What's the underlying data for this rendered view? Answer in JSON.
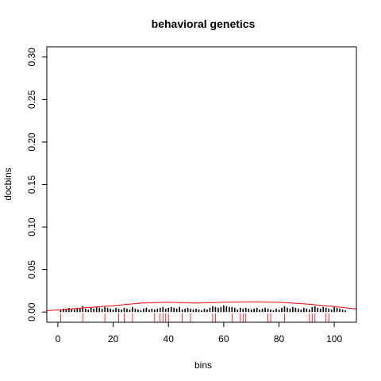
{
  "chart_data": {
    "type": "bar",
    "title": "behavioral genetics",
    "xlabel": "bins",
    "ylabel": "docbins",
    "xlim": [
      -4,
      108
    ],
    "ylim": [
      -0.012,
      0.312
    ],
    "x_ticks": [
      0,
      20,
      40,
      60,
      80,
      100
    ],
    "x_tick_labels": [
      "0",
      "20",
      "40",
      "60",
      "80",
      "100"
    ],
    "y_ticks": [
      0,
      0.05,
      0.1,
      0.15,
      0.2,
      0.25,
      0.3
    ],
    "y_tick_labels": [
      "0.00",
      "0.05",
      "0.10",
      "0.15",
      "0.20",
      "0.25",
      "0.30"
    ],
    "grid": false,
    "series": [
      {
        "kind": "bars",
        "color": "#000000",
        "x": [
          1,
          2,
          3,
          4,
          5,
          6,
          7,
          8,
          9,
          10,
          11,
          12,
          13,
          14,
          15,
          16,
          17,
          18,
          19,
          20,
          21,
          22,
          23,
          24,
          25,
          26,
          27,
          28,
          29,
          30,
          31,
          32,
          33,
          34,
          35,
          36,
          37,
          38,
          39,
          40,
          41,
          42,
          43,
          44,
          45,
          46,
          47,
          48,
          49,
          50,
          51,
          52,
          53,
          54,
          55,
          56,
          57,
          58,
          59,
          60,
          61,
          62,
          63,
          64,
          65,
          66,
          67,
          68,
          69,
          70,
          71,
          72,
          73,
          74,
          75,
          76,
          77,
          78,
          79,
          80,
          81,
          82,
          83,
          84,
          85,
          86,
          87,
          88,
          89,
          90,
          91,
          92,
          93,
          94,
          95,
          96,
          97,
          98,
          99,
          100,
          101,
          102,
          103,
          104
        ],
        "values": [
          0.003,
          0.004,
          0.003,
          0.005,
          0.004,
          0.003,
          0.005,
          0.004,
          0.007,
          0.004,
          0.003,
          0.005,
          0.004,
          0.006,
          0.005,
          0.004,
          0.006,
          0.005,
          0.004,
          0.003,
          0.005,
          0.004,
          0.003,
          0.005,
          0.004,
          0.003,
          0.006,
          0.004,
          0.003,
          0.002,
          0.004,
          0.005,
          0.003,
          0.004,
          0.003,
          0.004,
          0.005,
          0.006,
          0.004,
          0.005,
          0.006,
          0.005,
          0.004,
          0.006,
          0.003,
          0.004,
          0.005,
          0.004,
          0.003,
          0.004,
          0.003,
          0.002,
          0.004,
          0.003,
          0.005,
          0.007,
          0.006,
          0.005,
          0.006,
          0.008,
          0.007,
          0.006,
          0.006,
          0.005,
          0.003,
          0.005,
          0.004,
          0.005,
          0.004,
          0.003,
          0.004,
          0.005,
          0.003,
          0.004,
          0.005,
          0.004,
          0.003,
          0.002,
          0.004,
          0.003,
          0.005,
          0.007,
          0.005,
          0.004,
          0.006,
          0.005,
          0.004,
          0.003,
          0.005,
          0.004,
          0.003,
          0.006,
          0.007,
          0.005,
          0.004,
          0.006,
          0.005,
          0.004,
          0.003,
          0.006,
          0.005,
          0.004,
          0.003,
          0.002
        ]
      },
      {
        "kind": "rug",
        "color": "#ff0000",
        "x": [
          1,
          9,
          17,
          22,
          24,
          27,
          35,
          37,
          38,
          39,
          40,
          45,
          48,
          56,
          57,
          63,
          66,
          67,
          68,
          76,
          77,
          82,
          91,
          92,
          93,
          97,
          98
        ],
        "y_from": -0.0115,
        "y_to": -0.0015
      },
      {
        "kind": "smooth_line",
        "color": "#ff0000",
        "x": [
          -4,
          0,
          10,
          20,
          30,
          40,
          50,
          60,
          70,
          80,
          90,
          100,
          108
        ],
        "values": [
          0.0015,
          0.0025,
          0.005,
          0.0075,
          0.0105,
          0.0115,
          0.0105,
          0.0115,
          0.012,
          0.0115,
          0.0095,
          0.0065,
          0.0035
        ]
      }
    ]
  }
}
